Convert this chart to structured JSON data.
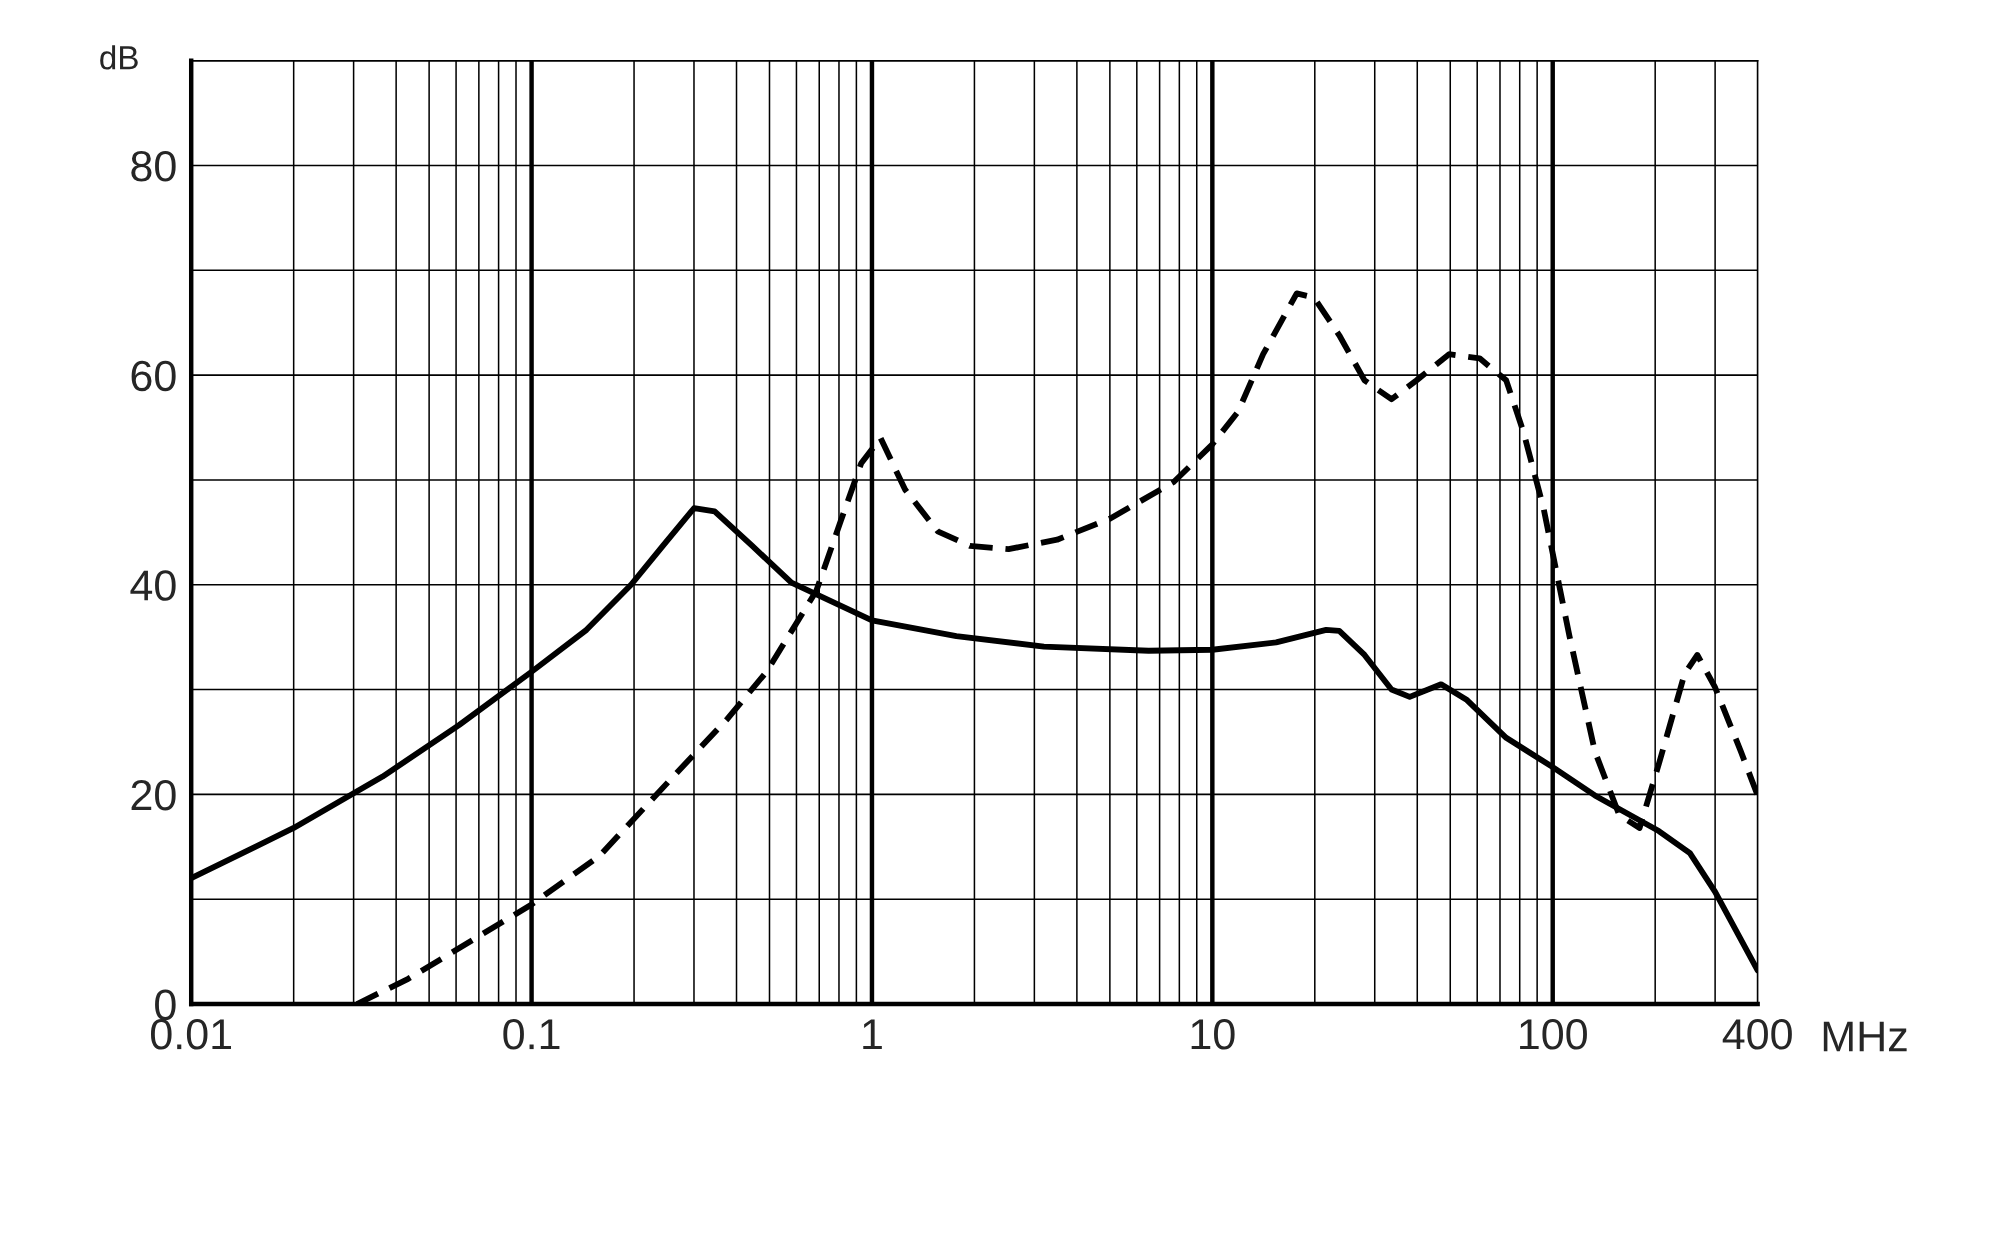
{
  "chart_data": {
    "type": "line",
    "xlabel": "MHz",
    "ylabel": "dB",
    "log": "x",
    "grid": true,
    "xlim": [
      0.01,
      400
    ],
    "ylim": [
      0,
      90
    ],
    "xticks": [
      0.01,
      {
        "value": 0.02,
        "label": null
      },
      {
        "value": 0.03,
        "label": null
      },
      {
        "value": 0.04,
        "label": null
      },
      {
        "value": 0.05,
        "label": null
      },
      {
        "value": 0.06,
        "label": null
      },
      {
        "value": 0.07,
        "label": null
      },
      {
        "value": 0.08,
        "label": null
      },
      {
        "value": 0.09,
        "label": null
      },
      0.1,
      {
        "value": 0.2,
        "label": null
      },
      {
        "value": 0.3,
        "label": null
      },
      {
        "value": 0.4,
        "label": null
      },
      {
        "value": 0.5,
        "label": null
      },
      {
        "value": 0.6,
        "label": null
      },
      {
        "value": 0.7,
        "label": null
      },
      {
        "value": 0.8,
        "label": null
      },
      {
        "value": 0.9,
        "label": null
      },
      1,
      {
        "value": 2,
        "label": null
      },
      {
        "value": 3,
        "label": null
      },
      {
        "value": 4,
        "label": null
      },
      {
        "value": 5,
        "label": null
      },
      {
        "value": 6,
        "label": null
      },
      {
        "value": 7,
        "label": null
      },
      {
        "value": 8,
        "label": null
      },
      {
        "value": 9,
        "label": null
      },
      10,
      {
        "value": 20,
        "label": null
      },
      {
        "value": 30,
        "label": null
      },
      {
        "value": 40,
        "label": null
      },
      {
        "value": 50,
        "label": null
      },
      {
        "value": 60,
        "label": null
      },
      {
        "value": 70,
        "label": null
      },
      {
        "value": 80,
        "label": null
      },
      {
        "value": 90,
        "label": null
      },
      100,
      {
        "value": 200,
        "label": null
      },
      {
        "value": 300,
        "label": null
      },
      400
    ],
    "yticks": [
      0,
      {
        "value": 10,
        "label": null
      },
      20,
      {
        "value": 30,
        "label": null
      },
      40,
      {
        "value": 50,
        "label": null
      },
      60,
      {
        "value": 70,
        "label": null
      },
      80,
      {
        "value": 90,
        "label": null
      }
    ],
    "series": [
      {
        "color": "#000000",
        "line_style": "solid",
        "x": [
          0.01,
          0.02,
          0.0365,
          0.0612,
          0.1,
          0.145,
          0.196,
          0.243,
          0.3,
          0.345,
          0.445,
          0.58,
          1,
          1.77,
          3.2,
          6.5,
          10,
          15.4,
          21.6,
          23.6,
          28,
          33.6,
          38,
          47,
          56,
          73,
          100,
          133,
          205,
          253,
          300,
          400
        ],
        "values": [
          12.0,
          16.8,
          21.7,
          26.6,
          31.7,
          35.7,
          40,
          43.7,
          47.3,
          47,
          43.7,
          40.2,
          36.6,
          35.1,
          34.1,
          33.7,
          33.8,
          34.5,
          35.7,
          35.6,
          33.3,
          30,
          29.3,
          30.5,
          29,
          25.4,
          22.6,
          19.9,
          16.5,
          14.4,
          10.7,
          3.2
        ]
      },
      {
        "color": "#000000",
        "line_style": "dashed",
        "x": [
          0.0307,
          0.0434,
          0.1,
          0.158,
          0.266,
          0.376,
          0.49,
          0.686,
          0.81,
          0.93,
          1.06,
          1.25,
          1.56,
          1.94,
          2.52,
          3.5,
          5.0,
          7.7,
          10,
          11.9,
          14.1,
          17.7,
          19.9,
          23.6,
          28,
          33.6,
          39.8,
          49.6,
          61,
          73,
          82,
          94,
          112,
          133,
          157,
          180,
          205,
          244,
          266,
          300,
          357,
          400
        ],
        "values": [
          0,
          2.4,
          9.5,
          14.1,
          22,
          27.2,
          31.7,
          39.4,
          46.1,
          51.6,
          54,
          49.1,
          45.1,
          43.7,
          43.4,
          44.3,
          46.3,
          49.8,
          53.4,
          56.5,
          62,
          67.8,
          67.4,
          63.8,
          59.5,
          57.7,
          59.5,
          62,
          61.6,
          59.5,
          54.6,
          47.3,
          35.1,
          24.1,
          18,
          16.8,
          22.9,
          31.5,
          33.3,
          30.2,
          24.1,
          19.9
        ]
      }
    ]
  }
}
